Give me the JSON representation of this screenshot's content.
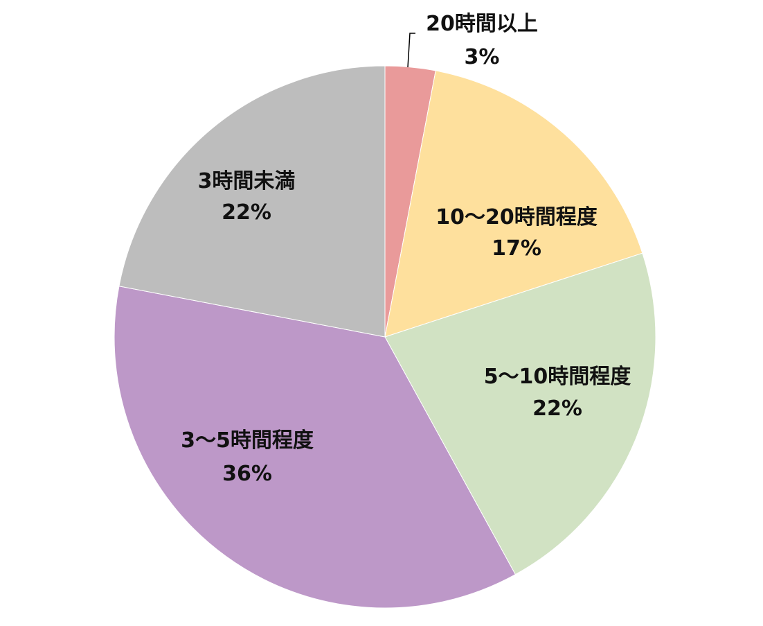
{
  "chart_data": {
    "type": "pie",
    "title": "",
    "start_angle_deg": 0,
    "direction": "clockwise",
    "slices": [
      {
        "label": "20時間以上",
        "value": 3,
        "value_label": "3%",
        "color": "#E99A9A"
      },
      {
        "label": "10～20時間程度",
        "value": 17,
        "value_label": "17%",
        "color": "#FEE09D"
      },
      {
        "label": "5～10時間程度",
        "value": 22,
        "value_label": "22%",
        "color": "#D1E2C3"
      },
      {
        "label": "3～5時間程度",
        "value": 36,
        "value_label": "36%",
        "color": "#BD98C8"
      },
      {
        "label": "3時間未満",
        "value": 22,
        "value_label": "22%",
        "color": "#BDBDBD"
      }
    ]
  }
}
